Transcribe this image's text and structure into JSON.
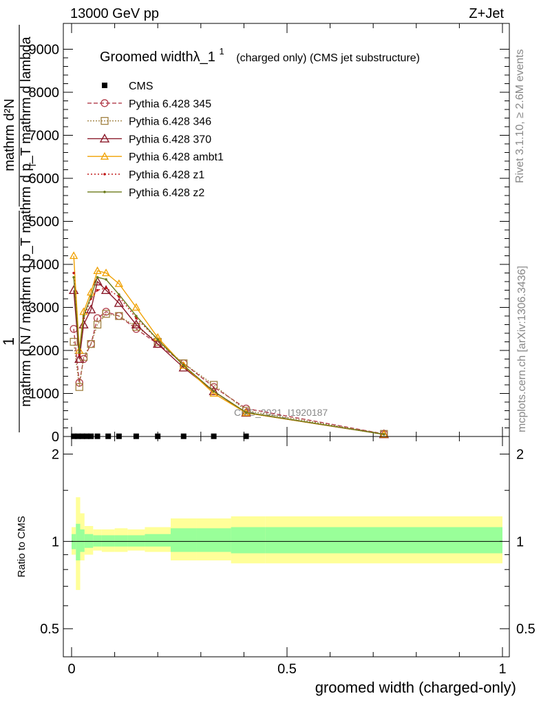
{
  "header": {
    "energy_label": "13000 GeV pp",
    "process_label": "Z+Jet",
    "rivet_label": "Rivet 3.1.10, ≥ 2.6M events",
    "mcplots_label": "mcplots.cern.ch [arXiv:1306.3436]",
    "watermark": "CMS_2021_I1920187"
  },
  "chart_data": [
    {
      "type": "line",
      "title": "Groomed widthλ_1",
      "title_superscript": "1",
      "title_suffix": "(charged only) (CMS jet substructure)",
      "ylabel_numerator": "mathrm d²N",
      "ylabel_denominator": "mathrm d p_T mathrm d lambda",
      "ylabel_prefix": "1",
      "ylabel_prefix_denominator": "mathrm d N / mathrm d p_T",
      "ylabel_subscript": "T",
      "xlim": [
        0,
        1
      ],
      "ylim": [
        0,
        9600
      ],
      "yticks": [
        0,
        1000,
        2000,
        3000,
        4000,
        5000,
        6000,
        7000,
        8000,
        9000
      ],
      "ytick_labels": [
        "0",
        "1000",
        "2000",
        "3000",
        "4000",
        "5000",
        "6000",
        "7000",
        "8000",
        "9000"
      ],
      "legend_position": "top-left",
      "series": [
        {
          "name": "CMS",
          "color": "#000000",
          "marker": "square",
          "dash": "none",
          "x": [
            0.005,
            0.015,
            0.025,
            0.035,
            0.045,
            0.06,
            0.085,
            0.11,
            0.15,
            0.2,
            0.26,
            0.33,
            0.405
          ],
          "y": [
            5,
            5,
            5,
            5,
            5,
            5,
            5,
            5,
            5,
            5,
            5,
            5,
            5
          ]
        },
        {
          "name": "Pythia 6.428 345",
          "color": "#b03a48",
          "marker": "circle",
          "dash": "6,3",
          "x": [
            0.005,
            0.018,
            0.028,
            0.045,
            0.06,
            0.08,
            0.11,
            0.15,
            0.2,
            0.26,
            0.33,
            0.405,
            0.725
          ],
          "y": [
            2500,
            1250,
            1800,
            2150,
            2750,
            2900,
            2800,
            2500,
            2150,
            1700,
            1150,
            650,
            60
          ]
        },
        {
          "name": "Pythia 6.428 346",
          "color": "#a08040",
          "marker": "square-open",
          "dash": "2,2",
          "x": [
            0.005,
            0.018,
            0.028,
            0.045,
            0.06,
            0.08,
            0.11,
            0.15,
            0.2,
            0.26,
            0.33,
            0.405,
            0.725
          ],
          "y": [
            2200,
            1150,
            1850,
            2150,
            2600,
            2850,
            2800,
            2550,
            2200,
            1700,
            1200,
            600,
            60
          ]
        },
        {
          "name": "Pythia 6.428 370",
          "color": "#8b1a2a",
          "marker": "triangle",
          "dash": "none",
          "x": [
            0.005,
            0.018,
            0.028,
            0.045,
            0.06,
            0.08,
            0.11,
            0.15,
            0.2,
            0.26,
            0.33,
            0.405,
            0.725
          ],
          "y": [
            3400,
            1800,
            2600,
            2950,
            3600,
            3400,
            3100,
            2600,
            2150,
            1600,
            1050,
            550,
            50
          ]
        },
        {
          "name": "Pythia 6.428 ambt1",
          "color": "#f0a000",
          "marker": "triangle-open",
          "dash": "none",
          "x": [
            0.005,
            0.018,
            0.028,
            0.045,
            0.06,
            0.08,
            0.11,
            0.15,
            0.2,
            0.26,
            0.33,
            0.405,
            0.725
          ],
          "y": [
            4200,
            2000,
            2900,
            3350,
            3850,
            3800,
            3550,
            3000,
            2300,
            1650,
            1000,
            550,
            50
          ]
        },
        {
          "name": "Pythia 6.428 z1",
          "color": "#c01818",
          "marker": "dot",
          "dash": "2,3",
          "x": [
            0.005,
            0.018,
            0.028,
            0.045,
            0.06,
            0.08,
            0.11,
            0.15,
            0.2,
            0.26,
            0.33,
            0.405,
            0.725
          ],
          "y": [
            3800,
            1900,
            2750,
            3200,
            3400,
            3450,
            3250,
            2750,
            2250,
            1650,
            1050,
            560,
            50
          ]
        },
        {
          "name": "Pythia 6.428 z2",
          "color": "#6b7a1a",
          "marker": "dot",
          "dash": "none",
          "x": [
            0.005,
            0.018,
            0.028,
            0.045,
            0.06,
            0.08,
            0.11,
            0.15,
            0.2,
            0.26,
            0.33,
            0.405,
            0.725
          ],
          "y": [
            3700,
            1950,
            2800,
            3250,
            3700,
            3650,
            3300,
            2800,
            2250,
            1650,
            1050,
            560,
            50
          ]
        }
      ]
    },
    {
      "type": "area",
      "ylabel": "Ratio to CMS",
      "xlabel": "groomed width (charged-only)",
      "xlim": [
        0,
        1
      ],
      "ylim": [
        0.4,
        2.3
      ],
      "ylog": true,
      "yticks": [
        0.5,
        1,
        2
      ],
      "ytick_labels": [
        "0.5",
        "1",
        "2"
      ],
      "xticks": [
        0,
        0.5,
        1
      ],
      "xtick_labels": [
        "0",
        "0.5",
        "1"
      ],
      "bins_edges": [
        0.0,
        0.01,
        0.02,
        0.03,
        0.05,
        0.07,
        0.1,
        0.13,
        0.17,
        0.23,
        0.29,
        0.37,
        0.45,
        1.0
      ],
      "band_outer_low": [
        0.9,
        0.68,
        0.86,
        0.9,
        0.93,
        0.92,
        0.92,
        0.93,
        0.92,
        0.86,
        0.86,
        0.84,
        0.84
      ],
      "band_outer_high": [
        1.12,
        1.42,
        1.25,
        1.13,
        1.1,
        1.1,
        1.11,
        1.1,
        1.12,
        1.2,
        1.2,
        1.22,
        1.22
      ],
      "band_inner_low": [
        0.94,
        0.86,
        0.92,
        0.95,
        0.96,
        0.96,
        0.96,
        0.96,
        0.96,
        0.92,
        0.92,
        0.91,
        0.91
      ],
      "band_inner_high": [
        1.06,
        1.15,
        1.1,
        1.06,
        1.05,
        1.05,
        1.05,
        1.05,
        1.06,
        1.11,
        1.11,
        1.12,
        1.12
      ],
      "band_outer_color": "#ffff99",
      "band_inner_color": "#99ff99"
    }
  ]
}
